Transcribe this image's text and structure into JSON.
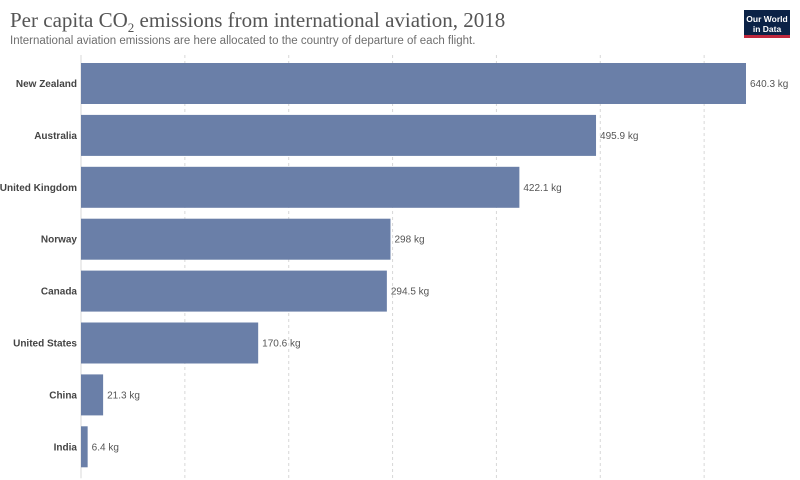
{
  "header": {
    "title_main": "Per capita CO",
    "title_sub": "2",
    "title_rest": " emissions from international aviation, 2018",
    "subtitle": "International aviation emissions are here allocated to the country of departure of each flight."
  },
  "logo": {
    "line1": "Our World",
    "line2": "in Data"
  },
  "chart_data": {
    "type": "bar",
    "orientation": "horizontal",
    "title": "Per capita CO₂ emissions from international aviation, 2018",
    "subtitle": "International aviation emissions are here allocated to the country of departure of each flight.",
    "categories": [
      "New Zealand",
      "Australia",
      "United Kingdom",
      "Norway",
      "Canada",
      "United States",
      "China",
      "India"
    ],
    "values": [
      640.3,
      495.9,
      422.1,
      298,
      294.5,
      170.6,
      21.3,
      6.4
    ],
    "value_labels": [
      "640.3 kg",
      "495.9 kg",
      "422.1 kg",
      "298 kg",
      "294.5 kg",
      "170.6 kg",
      "21.3 kg",
      "6.4 kg"
    ],
    "unit": "kg",
    "xlim": [
      0,
      640.3
    ],
    "grid": true,
    "bar_color": "#6a7fa8"
  }
}
